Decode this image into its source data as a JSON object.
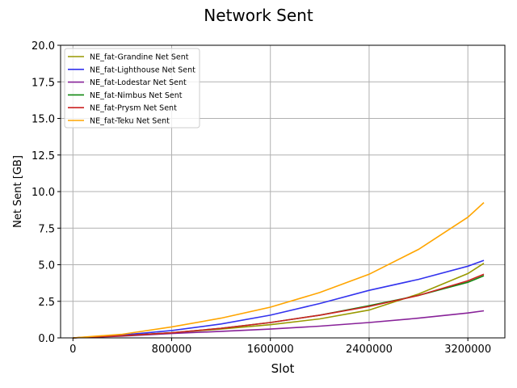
{
  "chart_data": {
    "type": "line",
    "title": "Network Sent",
    "xlabel": "Slot",
    "ylabel": "Net Sent [GB]",
    "xlim": [
      -100000,
      3500000
    ],
    "ylim": [
      0,
      20
    ],
    "x_ticks": [
      0,
      800000,
      1600000,
      2400000,
      3200000
    ],
    "x_tick_labels": [
      "0",
      "800000",
      "1600000",
      "2400000",
      "3200000"
    ],
    "y_ticks": [
      0,
      2.5,
      5,
      7.5,
      10,
      12.5,
      15,
      17.5,
      20
    ],
    "y_tick_labels": [
      "0.0",
      "2.5",
      "5.0",
      "7.5",
      "10.0",
      "12.5",
      "15.0",
      "17.5",
      "20.0"
    ],
    "grid": true,
    "legend_position": "top-left",
    "series": [
      {
        "name": "NE_fat-Grandine Net Sent",
        "color": "#999900",
        "x": [
          0,
          400000,
          800000,
          1200000,
          1600000,
          2000000,
          2400000,
          2800000,
          3200000,
          3330000
        ],
        "y": [
          0,
          0.15,
          0.35,
          0.6,
          0.9,
          1.3,
          1.9,
          3.0,
          4.4,
          5.1
        ]
      },
      {
        "name": "NE_fat-Lighthouse Net Sent",
        "color": "#3333ee",
        "x": [
          0,
          400000,
          800000,
          1200000,
          1600000,
          2000000,
          2400000,
          2800000,
          3200000,
          3330000
        ],
        "y": [
          0,
          0.2,
          0.5,
          0.95,
          1.55,
          2.35,
          3.25,
          4.0,
          4.9,
          5.3
        ]
      },
      {
        "name": "NE_fat-Lodestar Net Sent",
        "color": "#882299",
        "x": [
          0,
          400000,
          800000,
          1200000,
          1600000,
          2000000,
          2400000,
          2800000,
          3200000,
          3330000
        ],
        "y": [
          0,
          0.12,
          0.3,
          0.45,
          0.6,
          0.8,
          1.05,
          1.35,
          1.7,
          1.85
        ]
      },
      {
        "name": "NE_fat-Nimbus Net Sent",
        "color": "#118811",
        "x": [
          0,
          400000,
          800000,
          1200000,
          1600000,
          2000000,
          2400000,
          2800000,
          3200000,
          3330000
        ],
        "y": [
          0,
          0.15,
          0.35,
          0.65,
          1.05,
          1.55,
          2.2,
          2.9,
          3.8,
          4.25
        ]
      },
      {
        "name": "NE_fat-Prysm Net Sent",
        "color": "#cc2222",
        "x": [
          0,
          400000,
          800000,
          1200000,
          1600000,
          2000000,
          2400000,
          2800000,
          3200000,
          3330000
        ],
        "y": [
          0,
          0.15,
          0.35,
          0.65,
          1.05,
          1.55,
          2.15,
          2.9,
          3.9,
          4.35
        ]
      },
      {
        "name": "NE_fat-Teku Net Sent",
        "color": "#ffa500",
        "x": [
          0,
          400000,
          800000,
          1200000,
          1600000,
          2000000,
          2400000,
          2800000,
          3200000,
          3330000
        ],
        "y": [
          0,
          0.25,
          0.75,
          1.35,
          2.1,
          3.1,
          4.35,
          6.05,
          8.25,
          9.25
        ]
      }
    ]
  }
}
